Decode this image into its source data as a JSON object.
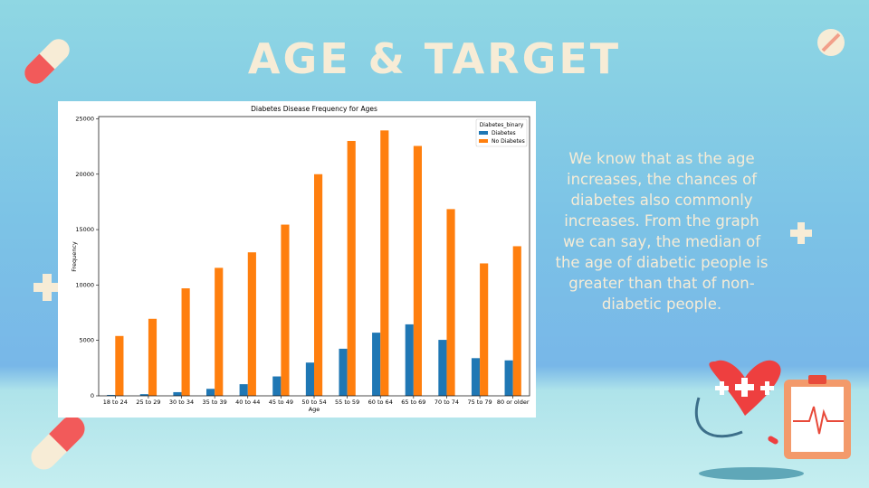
{
  "slide_title": "AGE & TARGET",
  "body_text": "We know that as the age increases, the chances of diabetes also commonly increases. From the graph we can say, the median of the age of diabetic people is greater than that of non-diabetic people.",
  "chart_data": {
    "type": "bar",
    "title": "Diabetes Disease Frequency for Ages",
    "x_label": "Age",
    "y_label": "Frequency",
    "categories": [
      "18 to 24",
      "25 to 29",
      "30 to 34",
      "35 to 39",
      "40 to 44",
      "45 to 49",
      "50 to 54",
      "55 to 59",
      "60 to 64",
      "65 to 69",
      "70 to 74",
      "75 to 79",
      "80 or older"
    ],
    "series": [
      {
        "name": "Diabetes",
        "color": "#1f77b4",
        "values": [
          80,
          150,
          330,
          630,
          1050,
          1750,
          3000,
          4250,
          5700,
          6450,
          5050,
          3400,
          3200
        ]
      },
      {
        "name": "No Diabetes",
        "color": "#ff7f0e",
        "values": [
          5400,
          6950,
          9700,
          11550,
          12950,
          15450,
          20000,
          23000,
          23950,
          22550,
          16850,
          11950,
          13500
        ]
      }
    ],
    "legend_title": "Diabetes_binary",
    "legend_position": "upper right",
    "ylim": [
      0,
      25200
    ],
    "yticks": [
      0,
      5000,
      10000,
      15000,
      20000,
      25000
    ]
  }
}
